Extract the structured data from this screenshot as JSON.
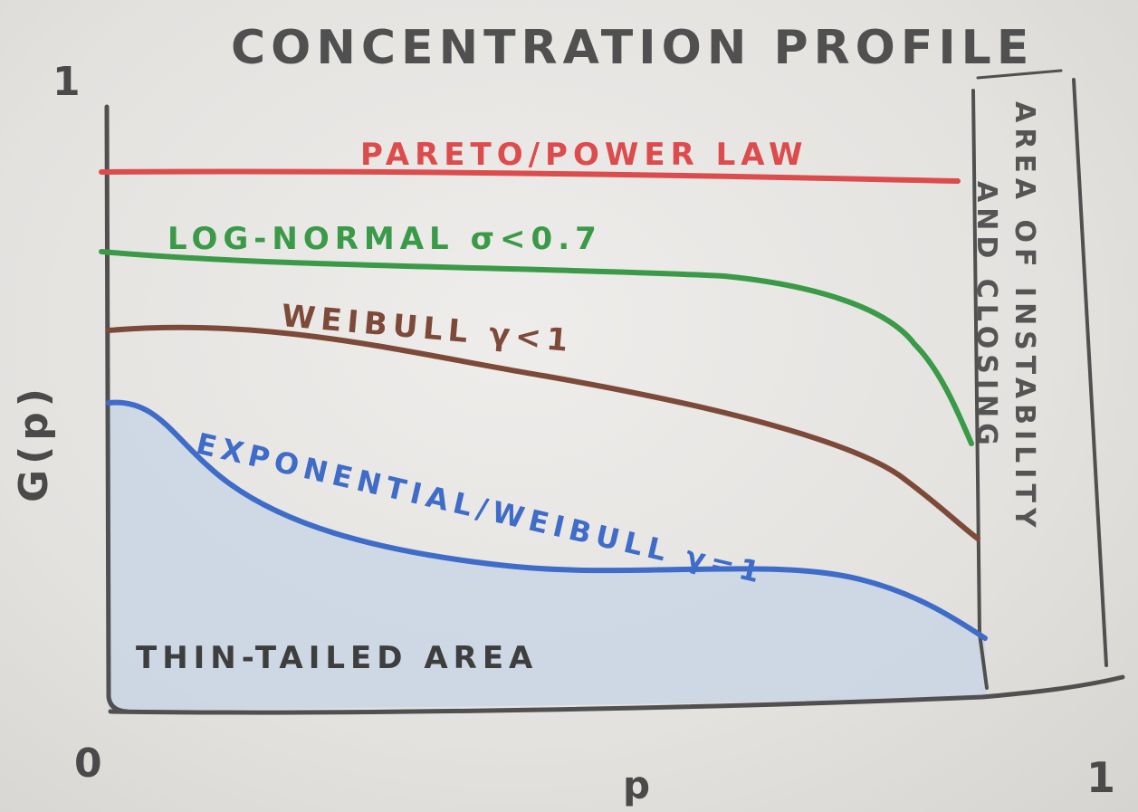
{
  "title": "CONCENTRATION PROFILE",
  "axes": {
    "y_label": "G(p)",
    "y_top_tick": "1",
    "x_label": "p",
    "origin_tick": "0",
    "x_right_tick": "1"
  },
  "curves": [
    {
      "id": "pareto",
      "label": "PARETO/POWER LAW",
      "color": "#dc4c4c"
    },
    {
      "id": "lognormal",
      "label": "LOG-NORMAL σ<0.7",
      "color": "#3a9a48"
    },
    {
      "id": "weibull",
      "label": "WEIBULL γ<1",
      "color": "#7d4a3a"
    },
    {
      "id": "exponential",
      "label": "EXPONENTIAL/WEIBULL γ=1",
      "color": "#3f6cc8"
    }
  ],
  "regions": {
    "thin_tailed": {
      "label": "THIN-TAILED AREA",
      "color": "#c6d4e6"
    },
    "instability": {
      "line1": "AREA OF INSTABILITY",
      "line2": "AND CLOSING"
    }
  },
  "colors": {
    "pencil": "#4a4a4a",
    "paper": "#e8e6e3"
  }
}
